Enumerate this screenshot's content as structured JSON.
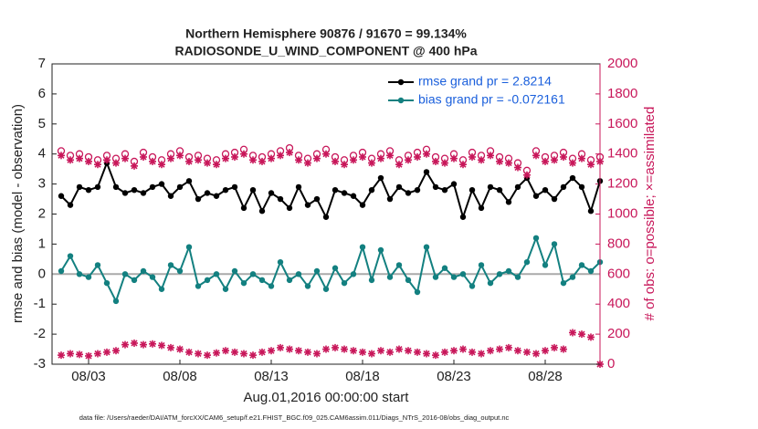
{
  "chart_data": {
    "type": "line",
    "title": "Northern Hemisphere 90876 / 91670 = 99.134%",
    "subtitle": "RADIOSONDE_U_WIND_COMPONENT @ 400 hPa",
    "xlabel": "Aug.01,2016 00:00:00 start",
    "ylabel": "rmse and bias (model - observation)",
    "y2label": "# of obs: o=possible; ×=assimilated",
    "footnote": "data file: /Users/raeder/DAI/ATM_forcXX/CAM6_setup/f.e21.FHIST_BGC.f09_025.CAM6assim.011/Diags_NTrS_2016-08/obs_diag_output.nc",
    "x": [
      1.5,
      2,
      2.5,
      3,
      3.5,
      4,
      4.5,
      5,
      5.5,
      6,
      6.5,
      7,
      7.5,
      8,
      8.5,
      9,
      9.5,
      10,
      10.5,
      11,
      11.5,
      12,
      12.5,
      13,
      13.5,
      14,
      14.5,
      15,
      15.5,
      16,
      16.5,
      17,
      17.5,
      18,
      18.5,
      19,
      19.5,
      20,
      20.5,
      21,
      21.5,
      22,
      22.5,
      23,
      23.5,
      24,
      24.5,
      25,
      25.5,
      26,
      26.5,
      27,
      27.5,
      28,
      28.5,
      29,
      29.5,
      30,
      30.5,
      31
    ],
    "xlim": [
      1,
      31
    ],
    "xticks": [
      {
        "value": 3,
        "label": "08/03"
      },
      {
        "value": 8,
        "label": "08/08"
      },
      {
        "value": 13,
        "label": "08/13"
      },
      {
        "value": 18,
        "label": "08/18"
      },
      {
        "value": 23,
        "label": "08/23"
      },
      {
        "value": 28,
        "label": "08/28"
      }
    ],
    "ylim": [
      -3,
      7
    ],
    "yticks": [
      -3,
      -2,
      -1,
      0,
      1,
      2,
      3,
      4,
      5,
      6,
      7
    ],
    "y2lim": [
      0,
      2000
    ],
    "y2ticks": [
      0,
      200,
      400,
      600,
      800,
      1000,
      1200,
      1400,
      1600,
      1800,
      2000
    ],
    "y2color": "#c8175a",
    "hline": 0,
    "legend": "upper right",
    "series": [
      {
        "name": "rmse grand pr = 2.8214",
        "color": "#000000",
        "marker": "dot",
        "line": true,
        "values": [
          2.6,
          2.3,
          2.9,
          2.8,
          2.9,
          3.7,
          2.9,
          2.7,
          2.8,
          2.7,
          2.9,
          3.0,
          2.6,
          2.9,
          3.1,
          2.5,
          2.7,
          2.6,
          2.8,
          2.9,
          2.2,
          2.8,
          2.1,
          2.7,
          2.5,
          2.2,
          2.9,
          2.3,
          2.5,
          1.9,
          2.8,
          2.7,
          2.6,
          2.3,
          2.8,
          3.2,
          2.5,
          2.9,
          2.7,
          2.8,
          3.4,
          2.9,
          2.8,
          3.0,
          1.9,
          2.8,
          2.2,
          2.9,
          2.8,
          2.4,
          2.9,
          3.2,
          2.6,
          2.8,
          2.5,
          2.9,
          3.2,
          2.9,
          2.1,
          3.1
        ]
      },
      {
        "name": "bias grand pr = -0.072161",
        "color": "#138080",
        "marker": "dot",
        "line": true,
        "values": [
          0.1,
          0.6,
          0.0,
          -0.1,
          0.3,
          -0.3,
          -0.9,
          0.0,
          -0.2,
          0.1,
          -0.1,
          -0.5,
          0.3,
          0.1,
          0.9,
          -0.4,
          -0.2,
          0.0,
          -0.5,
          0.1,
          -0.3,
          0.0,
          -0.2,
          -0.4,
          0.4,
          -0.2,
          0.0,
          -0.4,
          0.1,
          -0.5,
          0.2,
          -0.3,
          0.0,
          0.9,
          -0.2,
          0.8,
          -0.1,
          0.3,
          -0.2,
          -0.6,
          0.9,
          -0.1,
          0.2,
          -0.1,
          0.0,
          -0.4,
          0.3,
          -0.3,
          0.0,
          0.1,
          -0.1,
          0.4,
          1.2,
          0.3,
          1.0,
          -0.3,
          -0.1,
          0.3,
          0.1,
          0.4
        ]
      },
      {
        "color": "#c8175a",
        "marker": "circle",
        "line": false,
        "axis": "y2",
        "values": [
          1420,
          1390,
          1400,
          1380,
          1360,
          1390,
          1370,
          1400,
          1350,
          1410,
          1380,
          1360,
          1400,
          1420,
          1380,
          1390,
          1370,
          1360,
          1400,
          1410,
          1430,
          1390,
          1380,
          1400,
          1420,
          1440,
          1390,
          1370,
          1400,
          1430,
          1380,
          1360,
          1390,
          1410,
          1370,
          1400,
          1420,
          1360,
          1390,
          1410,
          1430,
          1380,
          1370,
          1400,
          1360,
          1410,
          1390,
          1420,
          1380,
          1370,
          1340,
          1290,
          1420,
          1380,
          1390,
          1410,
          1370,
          1400,
          1360,
          1380
        ]
      },
      {
        "color": "#c8175a",
        "marker": "star",
        "line": false,
        "axis": "y2",
        "values": [
          1390,
          1360,
          1370,
          1350,
          1330,
          1360,
          1340,
          1370,
          1320,
          1380,
          1350,
          1330,
          1370,
          1390,
          1350,
          1360,
          1340,
          1330,
          1370,
          1380,
          1400,
          1360,
          1350,
          1370,
          1390,
          1410,
          1360,
          1340,
          1370,
          1400,
          1350,
          1330,
          1360,
          1380,
          1340,
          1370,
          1390,
          1330,
          1360,
          1380,
          1400,
          1350,
          1340,
          1370,
          1330,
          1380,
          1360,
          1390,
          1350,
          1340,
          1310,
          1260,
          1390,
          1350,
          1360,
          1380,
          1340,
          1370,
          1330,
          1350
        ]
      },
      {
        "color": "#c8175a",
        "marker": "star",
        "line": false,
        "axis": "y2",
        "values": [
          60,
          70,
          65,
          55,
          70,
          80,
          90,
          130,
          140,
          130,
          135,
          125,
          110,
          100,
          80,
          70,
          60,
          75,
          90,
          80,
          70,
          60,
          80,
          90,
          110,
          100,
          90,
          80,
          70,
          100,
          110,
          100,
          90,
          80,
          70,
          90,
          80,
          100,
          90,
          80,
          70,
          60,
          80,
          90,
          100,
          80,
          70,
          90,
          100,
          110,
          90,
          80,
          70,
          90,
          110,
          100,
          210,
          200,
          180,
          0
        ]
      }
    ]
  }
}
